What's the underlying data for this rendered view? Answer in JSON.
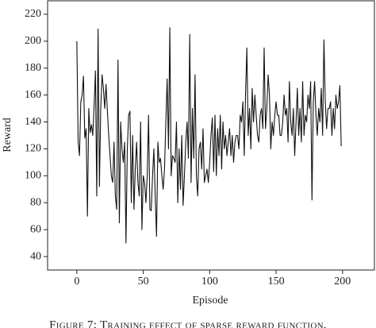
{
  "chart_data": {
    "type": "line",
    "xlabel": "Episode",
    "ylabel": "Reward",
    "caption": "Figure 7: Training effect of sparse reward function.",
    "xlim": [
      -22,
      224
    ],
    "ylim": [
      30,
      230
    ],
    "xticks": [
      0,
      50,
      100,
      150,
      200
    ],
    "yticks": [
      40,
      60,
      80,
      100,
      120,
      140,
      160,
      180,
      200,
      220
    ],
    "grid": false,
    "x": [
      0,
      1,
      2,
      3,
      4,
      5,
      6,
      7,
      8,
      9,
      10,
      11,
      12,
      13,
      14,
      15,
      16,
      17,
      18,
      19,
      20,
      21,
      22,
      23,
      24,
      25,
      26,
      27,
      28,
      29,
      30,
      31,
      32,
      33,
      34,
      35,
      36,
      37,
      38,
      39,
      40,
      41,
      42,
      43,
      44,
      45,
      46,
      47,
      48,
      49,
      50,
      51,
      52,
      53,
      54,
      55,
      56,
      57,
      58,
      59,
      60,
      61,
      62,
      63,
      64,
      65,
      66,
      67,
      68,
      69,
      70,
      71,
      72,
      73,
      74,
      75,
      76,
      77,
      78,
      79,
      80,
      81,
      82,
      83,
      84,
      85,
      86,
      87,
      88,
      89,
      90,
      91,
      92,
      93,
      94,
      95,
      96,
      97,
      98,
      99,
      100,
      101,
      102,
      103,
      104,
      105,
      106,
      107,
      108,
      109,
      110,
      111,
      112,
      113,
      114,
      115,
      116,
      117,
      118,
      119,
      120,
      121,
      122,
      123,
      124,
      125,
      126,
      127,
      128,
      129,
      130,
      131,
      132,
      133,
      134,
      135,
      136,
      137,
      138,
      139,
      140,
      141,
      142,
      143,
      144,
      145,
      146,
      147,
      148,
      149,
      150,
      151,
      152,
      153,
      154,
      155,
      156,
      157,
      158,
      159,
      160,
      161,
      162,
      163,
      164,
      165,
      166,
      167,
      168,
      169,
      170,
      171,
      172,
      173,
      174,
      175,
      176,
      177,
      178,
      179,
      180,
      181,
      182,
      183,
      184,
      185,
      186,
      187,
      188,
      189,
      190,
      191,
      192,
      193,
      194,
      195,
      196,
      197,
      198,
      199
    ],
    "series": [
      {
        "color": "#111111",
        "values": [
          200,
          125,
          115,
          155,
          160,
          174,
          128,
          135,
          70,
          150,
          132,
          138,
          130,
          152,
          178,
          85,
          209,
          92,
          150,
          175,
          165,
          150,
          168,
          148,
          130,
          115,
          100,
          95,
          125,
          85,
          75,
          186,
          65,
          140,
          120,
          110,
          125,
          50,
          120,
          145,
          148,
          80,
          130,
          75,
          105,
          125,
          95,
          85,
          140,
          60,
          100,
          95,
          80,
          100,
          145,
          75,
          74,
          100,
          120,
          85,
          55,
          125,
          110,
          113,
          100,
          90,
          105,
          140,
          172,
          120,
          210,
          100,
          115,
          113,
          110,
          140,
          80,
          120,
          90,
          130,
          78,
          100,
          125,
          140,
          113,
          205,
          95,
          150,
          113,
          175,
          100,
          85,
          120,
          125,
          105,
          135,
          95,
          100,
          105,
          95,
          110,
          130,
          143,
          103,
          145,
          100,
          135,
          115,
          145,
          105,
          140,
          120,
          130,
          115,
          125,
          135,
          115,
          130,
          110,
          125,
          130,
          130,
          120,
          145,
          140,
          155,
          115,
          160,
          195,
          130,
          150,
          120,
          165,
          140,
          160,
          145,
          130,
          125,
          145,
          150,
          135,
          195,
          135,
          150,
          175,
          160,
          120,
          140,
          130,
          145,
          155,
          145,
          145,
          130,
          130,
          140,
          160,
          145,
          150,
          125,
          170,
          140,
          130,
          150,
          115,
          140,
          165,
          130,
          150,
          125,
          170,
          130,
          145,
          140,
          160,
          150,
          170,
          82,
          155,
          170,
          145,
          130,
          150,
          140,
          165,
          130,
          201,
          155,
          135,
          150,
          150,
          155,
          130,
          150,
          135,
          160,
          150,
          155,
          167,
          122
        ]
      }
    ]
  }
}
